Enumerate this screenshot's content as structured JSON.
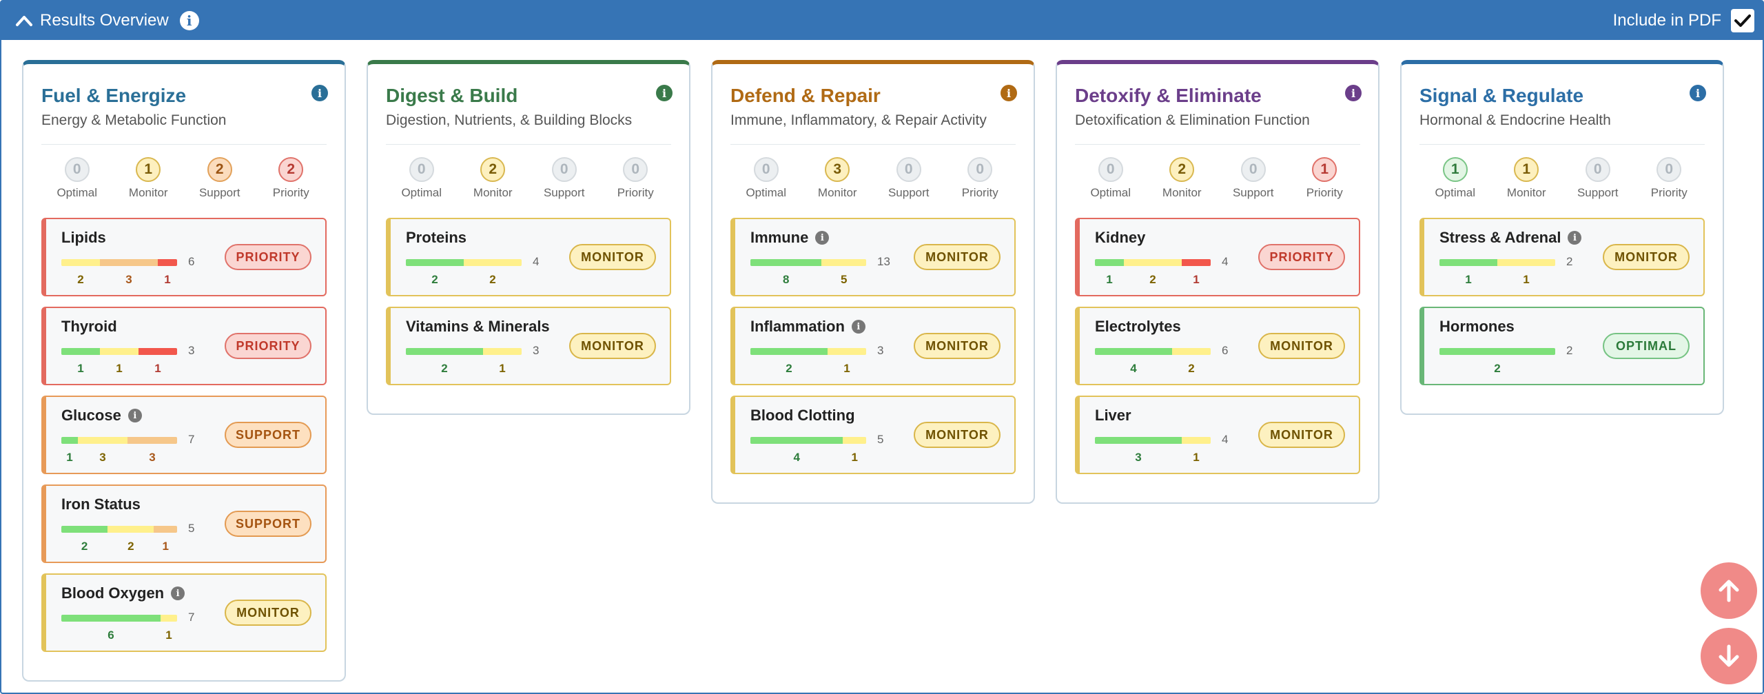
{
  "header": {
    "title": "Results Overview",
    "include_pdf_label": "Include in PDF",
    "include_pdf_checked": true
  },
  "count_labels": [
    "Optimal",
    "Monitor",
    "Support",
    "Priority"
  ],
  "groups": [
    {
      "title": "Fuel & Energize",
      "subtitle": "Energy & Metabolic Function",
      "color": "#2a6f97",
      "counts": [
        0,
        1,
        2,
        2
      ],
      "cards": [
        {
          "name": "Lipids",
          "info": false,
          "status": "priority",
          "badge": "PRIORITY",
          "total": "6",
          "segments": [
            {
              "type": "m",
              "n": 2
            },
            {
              "type": "s",
              "n": 3
            },
            {
              "type": "p",
              "n": 1
            }
          ]
        },
        {
          "name": "Thyroid",
          "info": false,
          "status": "priority",
          "badge": "PRIORITY",
          "total": "3",
          "segments": [
            {
              "type": "o",
              "n": 1
            },
            {
              "type": "m",
              "n": 1
            },
            {
              "type": "p",
              "n": 1
            }
          ]
        },
        {
          "name": "Glucose",
          "info": true,
          "status": "support",
          "badge": "SUPPORT",
          "total": "7",
          "segments": [
            {
              "type": "o",
              "n": 1
            },
            {
              "type": "m",
              "n": 3
            },
            {
              "type": "s",
              "n": 3
            }
          ]
        },
        {
          "name": "Iron Status",
          "info": false,
          "status": "support",
          "badge": "SUPPORT",
          "total": "5",
          "segments": [
            {
              "type": "o",
              "n": 2
            },
            {
              "type": "m",
              "n": 2
            },
            {
              "type": "s",
              "n": 1
            }
          ]
        },
        {
          "name": "Blood Oxygen",
          "info": true,
          "status": "monitor",
          "badge": "MONITOR",
          "total": "7",
          "segments": [
            {
              "type": "o",
              "n": 6
            },
            {
              "type": "m",
              "n": 1
            }
          ]
        }
      ]
    },
    {
      "title": "Digest & Build",
      "subtitle": "Digestion, Nutrients, & Building Blocks",
      "color": "#3a7a4a",
      "counts": [
        0,
        2,
        0,
        0
      ],
      "cards": [
        {
          "name": "Proteins",
          "info": false,
          "status": "monitor",
          "badge": "MONITOR",
          "total": "4",
          "segments": [
            {
              "type": "o",
              "n": 2
            },
            {
              "type": "m",
              "n": 2
            }
          ]
        },
        {
          "name": "Vitamins & Minerals",
          "info": false,
          "status": "monitor",
          "badge": "MONITOR",
          "total": "3",
          "segments": [
            {
              "type": "o",
              "n": 2
            },
            {
              "type": "m",
              "n": 1
            }
          ]
        }
      ]
    },
    {
      "title": "Defend & Repair",
      "subtitle": "Immune, Inflammatory, & Repair Activity",
      "color": "#b06a14",
      "counts": [
        0,
        3,
        0,
        0
      ],
      "cards": [
        {
          "name": "Immune",
          "info": true,
          "status": "monitor",
          "badge": "MONITOR",
          "total": "13",
          "segments": [
            {
              "type": "o",
              "n": 8
            },
            {
              "type": "m",
              "n": 5
            }
          ]
        },
        {
          "name": "Inflammation",
          "info": true,
          "status": "monitor",
          "badge": "MONITOR",
          "total": "3",
          "segments": [
            {
              "type": "o",
              "n": 2
            },
            {
              "type": "m",
              "n": 1
            }
          ]
        },
        {
          "name": "Blood Clotting",
          "info": false,
          "status": "monitor",
          "badge": "MONITOR",
          "total": "5",
          "segments": [
            {
              "type": "o",
              "n": 4
            },
            {
              "type": "m",
              "n": 1
            }
          ]
        }
      ]
    },
    {
      "title": "Detoxify & Eliminate",
      "subtitle": "Detoxification & Elimination Function",
      "color": "#6b3e8a",
      "counts": [
        0,
        2,
        0,
        1
      ],
      "cards": [
        {
          "name": "Kidney",
          "info": false,
          "status": "priority",
          "badge": "PRIORITY",
          "total": "4",
          "segments": [
            {
              "type": "o",
              "n": 1
            },
            {
              "type": "m",
              "n": 2
            },
            {
              "type": "p",
              "n": 1
            }
          ]
        },
        {
          "name": "Electrolytes",
          "info": false,
          "status": "monitor",
          "badge": "MONITOR",
          "total": "6",
          "segments": [
            {
              "type": "o",
              "n": 4
            },
            {
              "type": "m",
              "n": 2
            }
          ]
        },
        {
          "name": "Liver",
          "info": false,
          "status": "monitor",
          "badge": "MONITOR",
          "total": "4",
          "segments": [
            {
              "type": "o",
              "n": 3
            },
            {
              "type": "m",
              "n": 1
            }
          ]
        }
      ]
    },
    {
      "title": "Signal & Regulate",
      "subtitle": "Hormonal & Endocrine Health",
      "color": "#2c6ea6",
      "counts": [
        1,
        1,
        0,
        0
      ],
      "cards": [
        {
          "name": "Stress & Adrenal",
          "info": true,
          "status": "monitor",
          "badge": "MONITOR",
          "total": "2",
          "segments": [
            {
              "type": "o",
              "n": 1
            },
            {
              "type": "m",
              "n": 1
            }
          ]
        },
        {
          "name": "Hormones",
          "info": false,
          "status": "optimal",
          "badge": "OPTIMAL",
          "total": "2",
          "segments": [
            {
              "type": "o",
              "n": 2
            }
          ]
        }
      ]
    }
  ],
  "colors": {
    "header": "#3674b5",
    "scroll_buttons": "#f08a88"
  },
  "icons": {
    "collapse": "chevron-up-icon",
    "info": "info-icon",
    "scroll_up": "arrow-up-icon",
    "scroll_down": "arrow-down-icon",
    "checkbox": "checkmark-icon"
  }
}
